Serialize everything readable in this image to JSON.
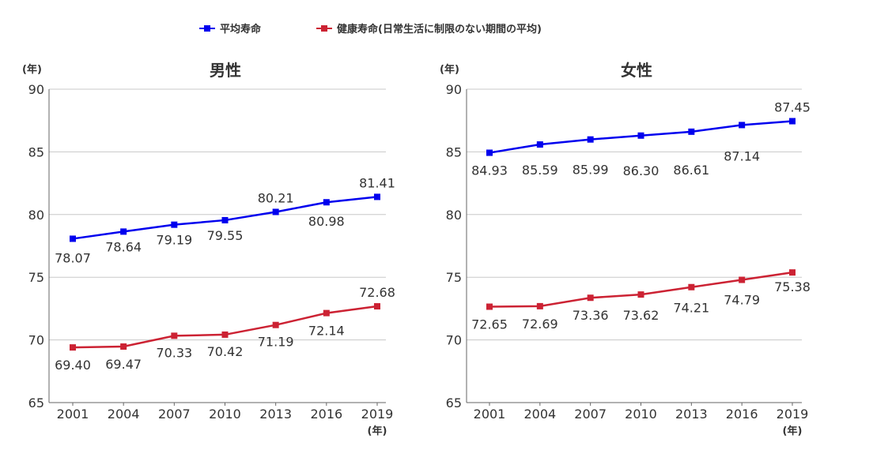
{
  "legend": {
    "items": [
      {
        "label": "平均寿命",
        "color": "#0000ee"
      },
      {
        "label": "健康寿命(日常生活に制限のない期間の平均)",
        "color": "#cc2233"
      }
    ]
  },
  "axis_unit_label": "(年)",
  "x_unit_label": "(年)",
  "chart_data": [
    {
      "type": "line",
      "title": "男性",
      "categories": [
        "2001",
        "2004",
        "2007",
        "2010",
        "2013",
        "2016",
        "2019"
      ],
      "ylim": [
        65,
        90
      ],
      "yticks": [
        65,
        70,
        75,
        80,
        85,
        90
      ],
      "grid": true,
      "legend_position": "top",
      "series": [
        {
          "name": "平均寿命",
          "color": "#0000ee",
          "values": [
            78.07,
            78.64,
            79.19,
            79.55,
            80.21,
            80.98,
            81.41
          ],
          "labels": [
            "78.07",
            "78.64",
            "79.19",
            "79.55",
            "80.21",
            "80.98",
            "81.41"
          ]
        },
        {
          "name": "健康寿命(日常生活に制限のない期間の平均)",
          "color": "#cc2233",
          "values": [
            69.4,
            69.47,
            70.33,
            70.42,
            71.19,
            72.14,
            72.68
          ],
          "labels": [
            "69.40",
            "69.47",
            "70.33",
            "70.42",
            "71.19",
            "72.14",
            "72.68"
          ]
        }
      ]
    },
    {
      "type": "line",
      "title": "女性",
      "categories": [
        "2001",
        "2004",
        "2007",
        "2010",
        "2013",
        "2016",
        "2019"
      ],
      "ylim": [
        65,
        90
      ],
      "yticks": [
        65,
        70,
        75,
        80,
        85,
        90
      ],
      "grid": true,
      "legend_position": "top",
      "series": [
        {
          "name": "平均寿命",
          "color": "#0000ee",
          "values": [
            84.93,
            85.59,
            85.99,
            86.3,
            86.61,
            87.14,
            87.45
          ],
          "labels": [
            "84.93",
            "85.59",
            "85.99",
            "86.30",
            "86.61",
            "87.14",
            "87.45"
          ]
        },
        {
          "name": "健康寿命(日常生活に制限のない期間の平均)",
          "color": "#cc2233",
          "values": [
            72.65,
            72.69,
            73.36,
            73.62,
            74.21,
            74.79,
            75.38
          ],
          "labels": [
            "72.65",
            "72.69",
            "73.36",
            "73.62",
            "74.21",
            "74.79",
            "75.38"
          ]
        }
      ]
    }
  ]
}
